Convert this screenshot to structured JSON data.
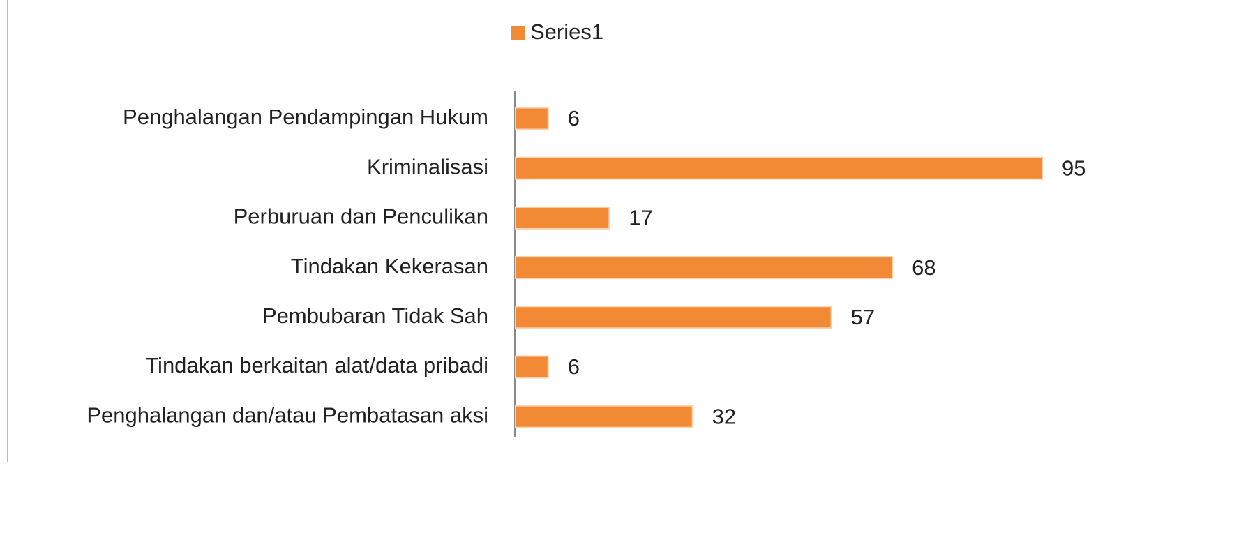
{
  "chart_data": {
    "type": "bar",
    "orientation": "horizontal",
    "categories": [
      "Penghalangan Pendampingan Hukum",
      "Kriminalisasi",
      "Perburuan dan Penculikan",
      "Tindakan Kekerasan",
      "Pembubaran Tidak Sah",
      "Tindakan berkaitan alat/data pribadi",
      "Penghalangan dan/atau Pembatasan aksi"
    ],
    "series": [
      {
        "name": "Series1",
        "color": "#f28a35",
        "values": [
          6,
          95,
          17,
          68,
          57,
          6,
          32
        ]
      }
    ],
    "legend": "top",
    "data_labels": true
  }
}
